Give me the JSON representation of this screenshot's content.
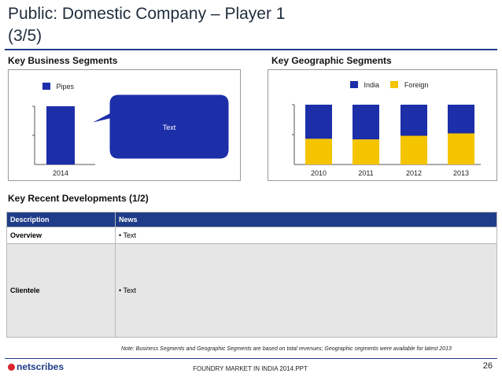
{
  "header": {
    "title_line1": "Public: Domestic Company – Player 1",
    "title_line2": "(3/5)"
  },
  "business_segments": {
    "heading": "Key Business Segments",
    "callout_text": "Text"
  },
  "geographic_segments": {
    "heading": "Key Geographic Segments"
  },
  "developments": {
    "heading": "Key Recent Developments (1/2)",
    "columns": [
      "Description",
      "News"
    ],
    "rows": [
      {
        "description": "Overview",
        "news": "• Text"
      },
      {
        "description": "Clientele",
        "news": "• Text"
      }
    ]
  },
  "note": "Note: Business Segments and Geographic Segments are based on total revenues; Geographic segments were available for latest 2013",
  "footer": {
    "logo_text": "netscribes",
    "center_text": "FOUNDRY MARKET IN INDIA 2014.PPT",
    "page_number": "26"
  },
  "colors": {
    "navy": "#1f3c88",
    "bar_blue": "#1c2ea8",
    "foreign_yellow": "#f5c400"
  },
  "chart_data": [
    {
      "type": "bar",
      "categories": [
        "2014"
      ],
      "series": [
        {
          "name": "Pipes",
          "values": [
            100
          ]
        }
      ],
      "ylim": [
        0,
        100
      ],
      "legend": "top-left",
      "grid": false
    },
    {
      "type": "bar",
      "stacked": true,
      "categories": [
        "2010",
        "2011",
        "2012",
        "2013"
      ],
      "series": [
        {
          "name": "India",
          "values": [
            57,
            58,
            52,
            48
          ]
        },
        {
          "name": "Foreign",
          "values": [
            43,
            42,
            48,
            52
          ]
        }
      ],
      "ylim": [
        0,
        100
      ],
      "legend": "top-right",
      "grid": false
    }
  ]
}
